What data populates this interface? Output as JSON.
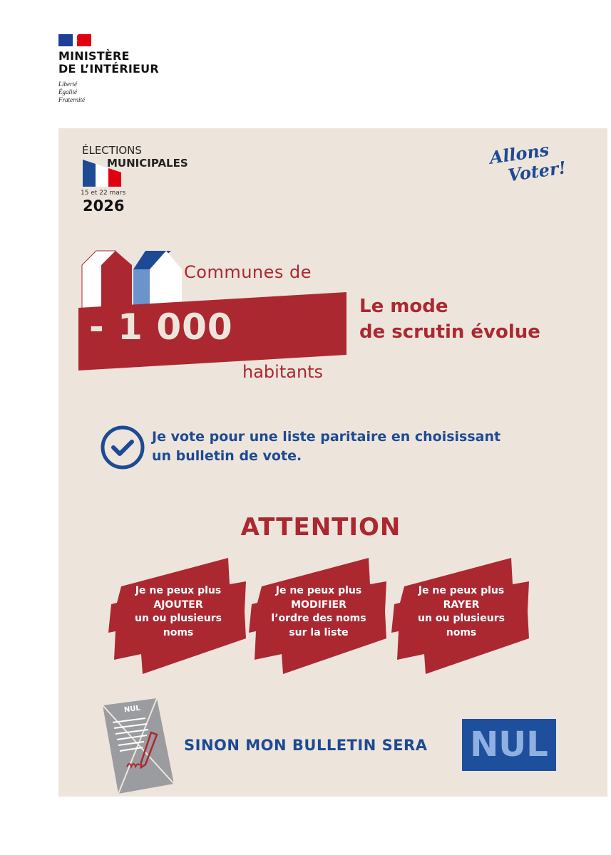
{
  "header": {
    "ministry_line1": "MINISTÈRE",
    "ministry_line2": "DE L’INTÉRIEUR",
    "motto": [
      "Liberté",
      "Égalité",
      "Fraternité"
    ]
  },
  "election": {
    "title": "ÉLECTIONS",
    "subtitle": "MUNICIPALES",
    "dates": "15 et 22 mars",
    "year": "2026"
  },
  "slogan": [
    "Allons",
    "Voter!"
  ],
  "communes": {
    "prefix": "Communes de",
    "number": "- 1 000",
    "suffix": "habitants"
  },
  "headline": [
    "Le mode",
    "de scrutin évolue"
  ],
  "vote_statement": [
    "Je vote pour une liste paritaire en choisissant",
    "un bulletin de vote."
  ],
  "attention": "ATTENTION",
  "warnings": [
    {
      "lines": [
        "Je ne peux plus",
        "AJOUTER",
        "un ou plusieurs",
        "noms"
      ]
    },
    {
      "lines": [
        "Je ne peux plus",
        "MODIFIER",
        "l’ordre des noms",
        "sur la liste"
      ]
    },
    {
      "lines": [
        "Je ne peux plus",
        "RAYER",
        "un ou plusieurs",
        "noms"
      ]
    }
  ],
  "footer": {
    "ballot_label": "NUL",
    "statement": "SINON MON BULLETIN SERA",
    "nul": "NUL"
  },
  "colors": {
    "red": "#ac2831",
    "blue": "#1d4a93",
    "beige": "#ede5dc",
    "light_blue": "#8fb0e0"
  }
}
